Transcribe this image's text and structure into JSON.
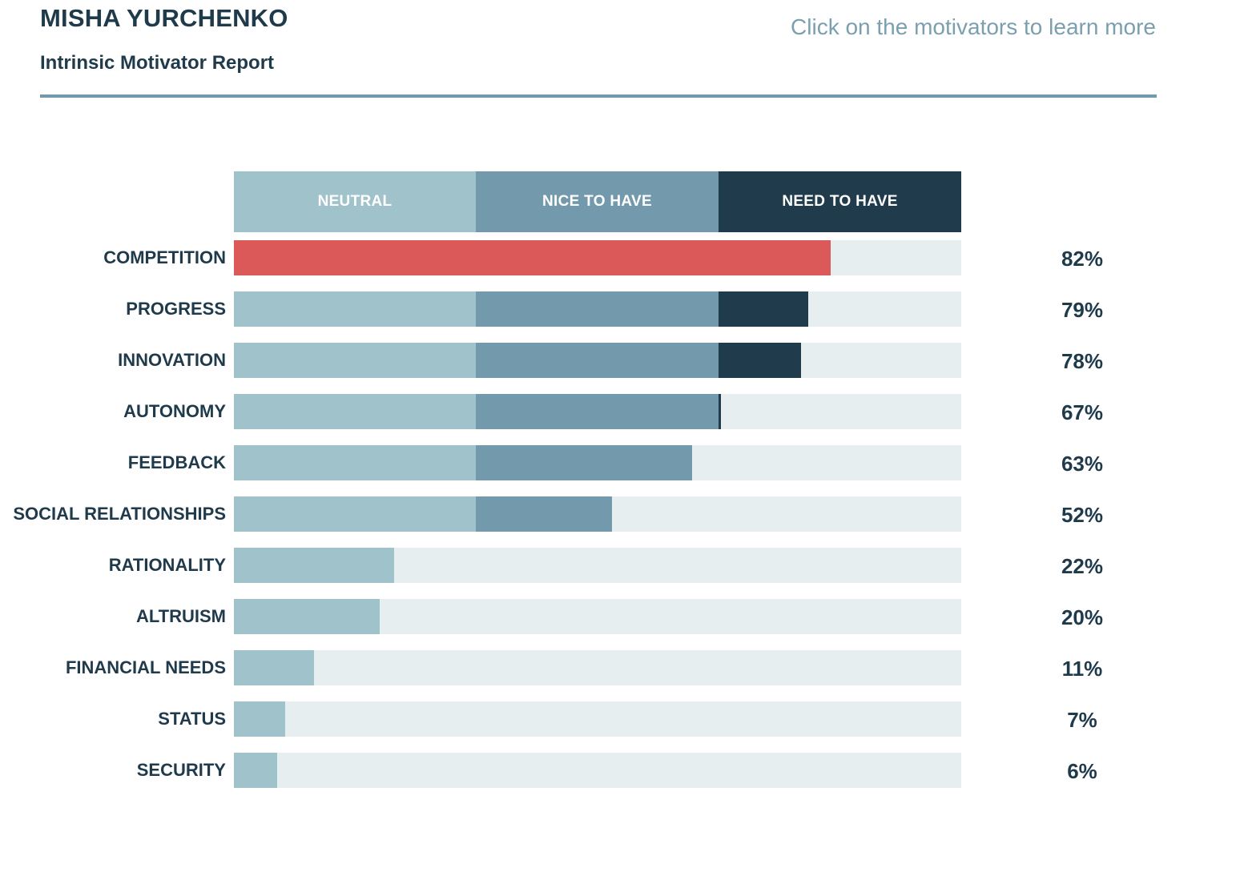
{
  "header": {
    "name": "MISHA YURCHENKO",
    "subtitle": "Intrinsic Motivator Report",
    "hint": "Click on the motivators to learn more"
  },
  "colors": {
    "neutral": "#a0c2cb",
    "nice_to_have": "#7399ac",
    "need_to_have": "#203b4c",
    "highlight": "#dc5959",
    "track": "#e6eef0"
  },
  "chart_data": {
    "type": "bar",
    "orientation": "horizontal",
    "stacked": true,
    "xlim": [
      0,
      100
    ],
    "zones": [
      {
        "name": "NEUTRAL",
        "from": 0,
        "to": 33.3
      },
      {
        "name": "NICE TO HAVE",
        "from": 33.3,
        "to": 66.6
      },
      {
        "name": "NEED TO HAVE",
        "from": 66.6,
        "to": 100
      }
    ],
    "categories": [
      "COMPETITION",
      "PROGRESS",
      "INNOVATION",
      "AUTONOMY",
      "FEEDBACK",
      "SOCIAL RELATIONSHIPS",
      "RATIONALITY",
      "ALTRUISM",
      "FINANCIAL NEEDS",
      "STATUS",
      "SECURITY"
    ],
    "values": [
      82,
      79,
      78,
      67,
      63,
      52,
      22,
      20,
      11,
      7,
      6
    ],
    "value_labels": [
      "82%",
      "79%",
      "78%",
      "67%",
      "63%",
      "52%",
      "22%",
      "20%",
      "11%",
      "7%",
      "6%"
    ],
    "highlighted": [
      "COMPETITION"
    ]
  }
}
